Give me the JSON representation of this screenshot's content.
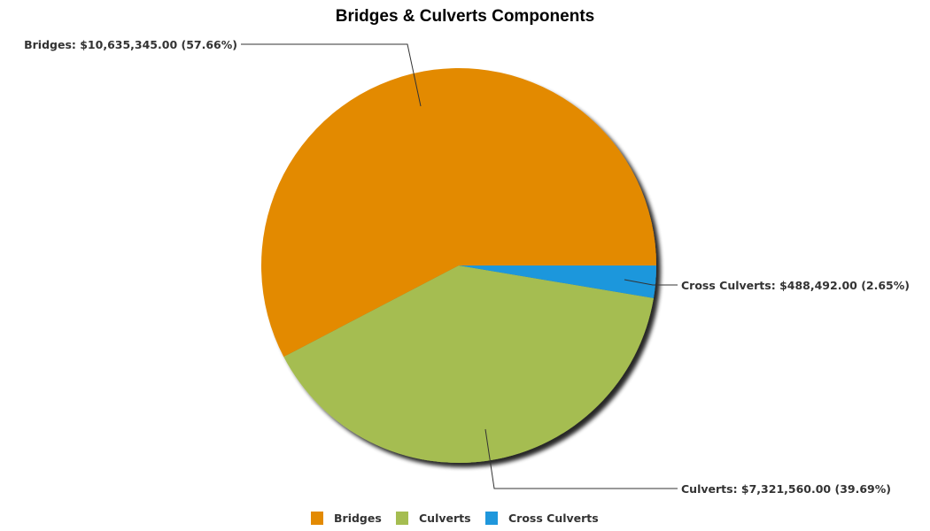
{
  "chart_data": {
    "type": "pie",
    "title": "Bridges & Culverts Components",
    "legend_position": "bottom-center",
    "slices": [
      {
        "name": "Bridges",
        "value": 10635345.0,
        "percent": 57.66,
        "label": "Bridges: $10,635,345.00 (57.66%)",
        "color": "#e38a02"
      },
      {
        "name": "Culverts",
        "value": 7321560.0,
        "percent": 39.69,
        "label": "Culverts: $7,321,560.00 (39.69%)",
        "color": "#a5bd51"
      },
      {
        "name": "Cross Culverts",
        "value": 488492.0,
        "percent": 2.65,
        "label": "Cross Culverts: $488,492.00 (2.65%)",
        "color": "#1f97dc"
      }
    ]
  }
}
